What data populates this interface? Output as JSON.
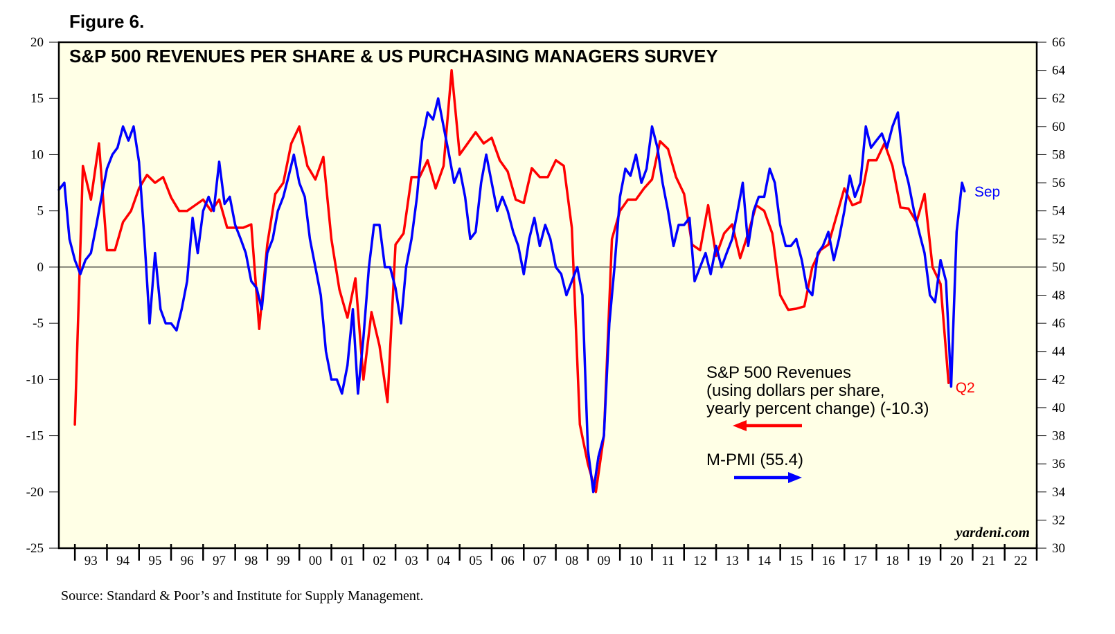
{
  "figure_label": "Figure 6.",
  "source_note": "Source: Standard & Poor’s and Institute for Supply Management.",
  "watermark": "yardeni.com",
  "colors": {
    "background": "#ffffe6",
    "revenues": "#ff0000",
    "pmi": "#0000ff",
    "frame": "#000000"
  },
  "chart_data": {
    "type": "line",
    "title": "S&P 500 REVENUES PER SHARE & US PURCHASING MANAGERS SURVEY",
    "x_range": [
      1992.5,
      2023.0
    ],
    "x_tick_labels": [
      "93",
      "94",
      "95",
      "96",
      "97",
      "98",
      "99",
      "00",
      "01",
      "02",
      "03",
      "04",
      "05",
      "06",
      "07",
      "08",
      "09",
      "10",
      "11",
      "12",
      "13",
      "14",
      "15",
      "16",
      "17",
      "18",
      "19",
      "20",
      "21",
      "22"
    ],
    "y_left": {
      "min": -25,
      "max": 20,
      "ticks": [
        -25,
        -20,
        -15,
        -10,
        -5,
        0,
        5,
        10,
        15,
        20
      ],
      "tick_labels": [
        "-25",
        "-20",
        "-15",
        "-10",
        "-5",
        "0",
        "5",
        "10",
        "15",
        "20"
      ]
    },
    "y_right": {
      "min": 30,
      "max": 66,
      "ticks": [
        30,
        32,
        34,
        36,
        38,
        40,
        42,
        44,
        46,
        48,
        50,
        52,
        54,
        56,
        58,
        60,
        62,
        64,
        66
      ],
      "tick_labels": [
        "30",
        "32",
        "34",
        "36",
        "38",
        "40",
        "42",
        "44",
        "46",
        "48",
        "50",
        "52",
        "54",
        "56",
        "58",
        "60",
        "62",
        "64",
        "66"
      ]
    },
    "zero_line": 0,
    "series": [
      {
        "name": "S&P 500 Revenues",
        "axis": "left",
        "color": "#ff0000",
        "legend": [
          "S&P 500 Revenues",
          "(using dollars per share,",
          "yearly percent change) (-10.3)"
        ],
        "arrow": "left",
        "end_label": "Q2",
        "points": [
          [
            1993.0,
            -14
          ],
          [
            1993.25,
            9
          ],
          [
            1993.5,
            6
          ],
          [
            1993.75,
            11
          ],
          [
            1994.0,
            1.5
          ],
          [
            1994.25,
            1.5
          ],
          [
            1994.5,
            4
          ],
          [
            1994.75,
            5
          ],
          [
            1995.0,
            7
          ],
          [
            1995.25,
            8.2
          ],
          [
            1995.5,
            7.5
          ],
          [
            1995.75,
            8
          ],
          [
            1996.0,
            6.2
          ],
          [
            1996.25,
            5
          ],
          [
            1996.5,
            5
          ],
          [
            1996.75,
            5.5
          ],
          [
            1997.0,
            6
          ],
          [
            1997.25,
            5
          ],
          [
            1997.5,
            6
          ],
          [
            1997.75,
            3.5
          ],
          [
            1998.0,
            3.5
          ],
          [
            1998.25,
            3.5
          ],
          [
            1998.5,
            3.8
          ],
          [
            1998.75,
            -5.5
          ],
          [
            1999.0,
            2
          ],
          [
            1999.25,
            6.5
          ],
          [
            1999.5,
            7.5
          ],
          [
            1999.75,
            11
          ],
          [
            2000.0,
            12.5
          ],
          [
            2000.25,
            9
          ],
          [
            2000.5,
            7.8
          ],
          [
            2000.75,
            9.8
          ],
          [
            2001.0,
            2.5
          ],
          [
            2001.25,
            -2
          ],
          [
            2001.5,
            -4.5
          ],
          [
            2001.75,
            -1
          ],
          [
            2002.0,
            -10
          ],
          [
            2002.25,
            -4
          ],
          [
            2002.5,
            -7
          ],
          [
            2002.75,
            -12
          ],
          [
            2003.0,
            2
          ],
          [
            2003.25,
            3
          ],
          [
            2003.5,
            8
          ],
          [
            2003.75,
            8
          ],
          [
            2004.0,
            9.5
          ],
          [
            2004.25,
            7
          ],
          [
            2004.5,
            9
          ],
          [
            2004.75,
            17.5
          ],
          [
            2005.0,
            10
          ],
          [
            2005.25,
            11
          ],
          [
            2005.5,
            12
          ],
          [
            2005.75,
            11
          ],
          [
            2006.0,
            11.5
          ],
          [
            2006.25,
            9.5
          ],
          [
            2006.5,
            8.5
          ],
          [
            2006.75,
            6
          ],
          [
            2007.0,
            5.7
          ],
          [
            2007.25,
            8.8
          ],
          [
            2007.5,
            8
          ],
          [
            2007.75,
            8
          ],
          [
            2008.0,
            9.5
          ],
          [
            2008.25,
            9
          ],
          [
            2008.5,
            3.5
          ],
          [
            2008.75,
            -14
          ],
          [
            2009.0,
            -17.5
          ],
          [
            2009.25,
            -20
          ],
          [
            2009.5,
            -15
          ],
          [
            2009.75,
            2.5
          ],
          [
            2010.0,
            5
          ],
          [
            2010.25,
            6
          ],
          [
            2010.5,
            6
          ],
          [
            2010.75,
            7
          ],
          [
            2011.0,
            7.8
          ],
          [
            2011.25,
            11.2
          ],
          [
            2011.5,
            10.5
          ],
          [
            2011.75,
            8
          ],
          [
            2012.0,
            6.5
          ],
          [
            2012.25,
            2
          ],
          [
            2012.5,
            1.5
          ],
          [
            2012.75,
            5.5
          ],
          [
            2013.0,
            1
          ],
          [
            2013.25,
            3
          ],
          [
            2013.5,
            3.8
          ],
          [
            2013.75,
            0.8
          ],
          [
            2014.0,
            3
          ],
          [
            2014.25,
            5.5
          ],
          [
            2014.5,
            5
          ],
          [
            2014.75,
            3
          ],
          [
            2015.0,
            -2.5
          ],
          [
            2015.25,
            -3.8
          ],
          [
            2015.5,
            -3.7
          ],
          [
            2015.75,
            -3.5
          ],
          [
            2016.0,
            0
          ],
          [
            2016.25,
            1.5
          ],
          [
            2016.5,
            2
          ],
          [
            2016.75,
            4.5
          ],
          [
            2017.0,
            7
          ],
          [
            2017.25,
            5.5
          ],
          [
            2017.5,
            5.8
          ],
          [
            2017.75,
            9.5
          ],
          [
            2018.0,
            9.5
          ],
          [
            2018.25,
            11
          ],
          [
            2018.5,
            9
          ],
          [
            2018.75,
            5.3
          ],
          [
            2019.0,
            5.2
          ],
          [
            2019.25,
            4
          ],
          [
            2019.5,
            6.5
          ],
          [
            2019.75,
            0
          ],
          [
            2020.0,
            -1.5
          ],
          [
            2020.25,
            -10.3
          ]
        ]
      },
      {
        "name": "M-PMI",
        "axis": "right",
        "color": "#0000ff",
        "legend": [
          "M-PMI (55.4)"
        ],
        "arrow": "right",
        "end_label": "Sep",
        "points": [
          [
            1992.5,
            55.5
          ],
          [
            1992.67,
            56
          ],
          [
            1992.83,
            52
          ],
          [
            1993.0,
            50.5
          ],
          [
            1993.17,
            49.5
          ],
          [
            1993.33,
            50.5
          ],
          [
            1993.5,
            51
          ],
          [
            1993.67,
            53
          ],
          [
            1993.83,
            55
          ],
          [
            1994.0,
            57
          ],
          [
            1994.17,
            58
          ],
          [
            1994.33,
            58.5
          ],
          [
            1994.5,
            60
          ],
          [
            1994.67,
            59
          ],
          [
            1994.83,
            60
          ],
          [
            1995.0,
            57.5
          ],
          [
            1995.17,
            52
          ],
          [
            1995.33,
            46
          ],
          [
            1995.5,
            51
          ],
          [
            1995.67,
            47
          ],
          [
            1995.83,
            46
          ],
          [
            1996.0,
            46
          ],
          [
            1996.17,
            45.5
          ],
          [
            1996.33,
            47
          ],
          [
            1996.5,
            49
          ],
          [
            1996.67,
            53.5
          ],
          [
            1996.83,
            51
          ],
          [
            1997.0,
            54
          ],
          [
            1997.17,
            55
          ],
          [
            1997.33,
            54
          ],
          [
            1997.5,
            57.5
          ],
          [
            1997.67,
            54.5
          ],
          [
            1997.83,
            55
          ],
          [
            1998.0,
            53
          ],
          [
            1998.17,
            52
          ],
          [
            1998.33,
            51
          ],
          [
            1998.5,
            49
          ],
          [
            1998.67,
            48.5
          ],
          [
            1998.83,
            47
          ],
          [
            1999.0,
            51
          ],
          [
            1999.17,
            52
          ],
          [
            1999.33,
            54
          ],
          [
            1999.5,
            55
          ],
          [
            1999.67,
            56.5
          ],
          [
            1999.83,
            58
          ],
          [
            2000.0,
            56
          ],
          [
            2000.17,
            55
          ],
          [
            2000.33,
            52
          ],
          [
            2000.5,
            50
          ],
          [
            2000.67,
            48
          ],
          [
            2000.83,
            44
          ],
          [
            2001.0,
            42
          ],
          [
            2001.17,
            42
          ],
          [
            2001.33,
            41
          ],
          [
            2001.5,
            43
          ],
          [
            2001.67,
            47
          ],
          [
            2001.83,
            41
          ],
          [
            2002.0,
            45
          ],
          [
            2002.17,
            50
          ],
          [
            2002.33,
            53
          ],
          [
            2002.5,
            53
          ],
          [
            2002.67,
            50
          ],
          [
            2002.83,
            50
          ],
          [
            2003.0,
            48.5
          ],
          [
            2003.17,
            46
          ],
          [
            2003.33,
            50
          ],
          [
            2003.5,
            52
          ],
          [
            2003.67,
            55
          ],
          [
            2003.83,
            59
          ],
          [
            2004.0,
            61
          ],
          [
            2004.17,
            60.5
          ],
          [
            2004.33,
            62
          ],
          [
            2004.5,
            60
          ],
          [
            2004.67,
            58
          ],
          [
            2004.83,
            56
          ],
          [
            2005.0,
            57
          ],
          [
            2005.17,
            55
          ],
          [
            2005.33,
            52
          ],
          [
            2005.5,
            52.5
          ],
          [
            2005.67,
            56
          ],
          [
            2005.83,
            58
          ],
          [
            2006.0,
            56
          ],
          [
            2006.17,
            54
          ],
          [
            2006.33,
            55
          ],
          [
            2006.5,
            54
          ],
          [
            2006.67,
            52.5
          ],
          [
            2006.83,
            51.5
          ],
          [
            2007.0,
            49.5
          ],
          [
            2007.17,
            52
          ],
          [
            2007.33,
            53.5
          ],
          [
            2007.5,
            51.5
          ],
          [
            2007.67,
            53
          ],
          [
            2007.83,
            52
          ],
          [
            2008.0,
            50
          ],
          [
            2008.17,
            49.5
          ],
          [
            2008.33,
            48
          ],
          [
            2008.5,
            49
          ],
          [
            2008.67,
            50
          ],
          [
            2008.83,
            48
          ],
          [
            2009.0,
            37
          ],
          [
            2009.17,
            34
          ],
          [
            2009.33,
            36.5
          ],
          [
            2009.5,
            38
          ],
          [
            2009.67,
            46
          ],
          [
            2009.83,
            50
          ],
          [
            2010.0,
            55
          ],
          [
            2010.17,
            57
          ],
          [
            2010.33,
            56.5
          ],
          [
            2010.5,
            58
          ],
          [
            2010.67,
            56
          ],
          [
            2010.83,
            57
          ],
          [
            2011.0,
            60
          ],
          [
            2011.17,
            58.5
          ],
          [
            2011.33,
            56
          ],
          [
            2011.5,
            54
          ],
          [
            2011.67,
            51.5
          ],
          [
            2011.83,
            53
          ],
          [
            2012.0,
            53
          ],
          [
            2012.17,
            53.5
          ],
          [
            2012.33,
            49
          ],
          [
            2012.5,
            50
          ],
          [
            2012.67,
            51
          ],
          [
            2012.83,
            49.5
          ],
          [
            2013.0,
            51.5
          ],
          [
            2013.17,
            50
          ],
          [
            2013.33,
            51
          ],
          [
            2013.5,
            52
          ],
          [
            2013.67,
            54
          ],
          [
            2013.83,
            56
          ],
          [
            2014.0,
            51.5
          ],
          [
            2014.17,
            54
          ],
          [
            2014.33,
            55
          ],
          [
            2014.5,
            55
          ],
          [
            2014.67,
            57
          ],
          [
            2014.83,
            56
          ],
          [
            2015.0,
            53
          ],
          [
            2015.17,
            51.5
          ],
          [
            2015.33,
            51.5
          ],
          [
            2015.5,
            52
          ],
          [
            2015.67,
            50.5
          ],
          [
            2015.83,
            48.5
          ],
          [
            2016.0,
            48
          ],
          [
            2016.17,
            51
          ],
          [
            2016.33,
            51.5
          ],
          [
            2016.5,
            52.5
          ],
          [
            2016.67,
            50.5
          ],
          [
            2016.83,
            52
          ],
          [
            2017.0,
            54
          ],
          [
            2017.17,
            56.5
          ],
          [
            2017.33,
            55
          ],
          [
            2017.5,
            56
          ],
          [
            2017.67,
            60
          ],
          [
            2017.83,
            58.5
          ],
          [
            2018.0,
            59
          ],
          [
            2018.17,
            59.5
          ],
          [
            2018.33,
            58.5
          ],
          [
            2018.5,
            60
          ],
          [
            2018.67,
            61
          ],
          [
            2018.83,
            57.5
          ],
          [
            2019.0,
            56
          ],
          [
            2019.17,
            54
          ],
          [
            2019.33,
            52.5
          ],
          [
            2019.5,
            51
          ],
          [
            2019.67,
            48
          ],
          [
            2019.83,
            47.5
          ],
          [
            2020.0,
            50.5
          ],
          [
            2020.17,
            49
          ],
          [
            2020.33,
            41.5
          ],
          [
            2020.5,
            52.5
          ],
          [
            2020.67,
            56
          ],
          [
            2020.75,
            55.4
          ]
        ]
      }
    ]
  }
}
